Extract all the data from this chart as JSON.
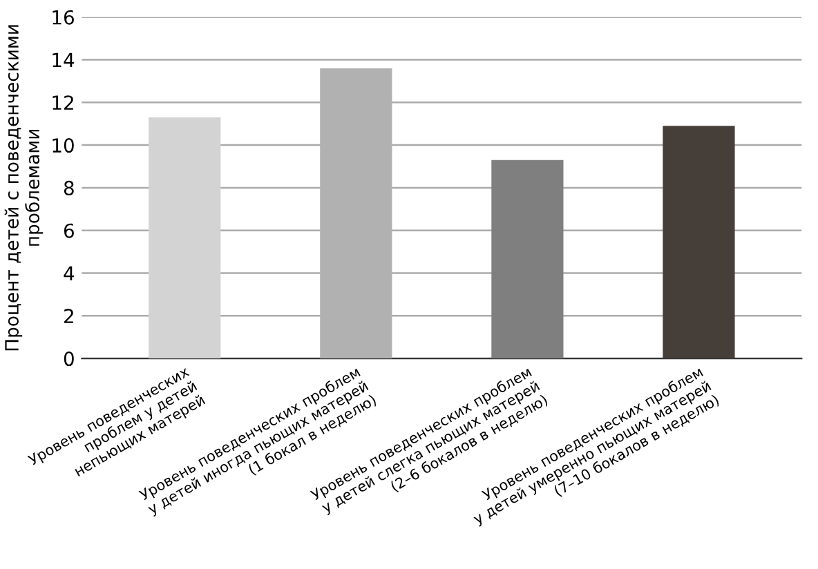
{
  "chart_data": {
    "type": "bar",
    "ylabel": "Процент детей с поведенческими\nпроблемами",
    "categories": [
      "Уровень поведенческих\nпроблем у детей\nнепьющих матерей",
      "Уровень поведенческих проблем\nу детей иногда пьющих матерей\n(1 бокал в неделю)",
      "Уровень поведенческих проблем\nу детей слегка пьющих матерей\n(2–6 бокалов в неделю)",
      "Уровень поведенческих проблем\nу детей умеренно пьющих матерей\n(7–10 бокалов в неделю)"
    ],
    "values": [
      11.3,
      13.6,
      9.3,
      10.9
    ],
    "colors": [
      "#d3d3d3",
      "#b1b1b1",
      "#7f7f7f",
      "#453e39"
    ],
    "ylim": [
      0,
      16
    ],
    "yticks": [
      0,
      2,
      4,
      6,
      8,
      10,
      12,
      14,
      16
    ],
    "grid": "y",
    "legend": false
  }
}
